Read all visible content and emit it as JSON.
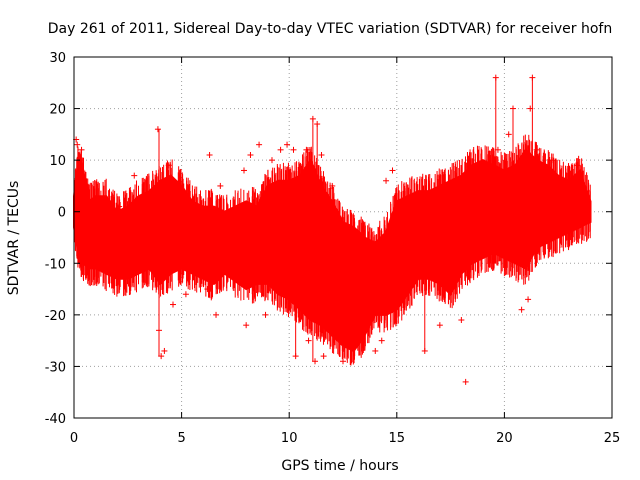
{
  "chart_data": {
    "type": "scatter",
    "title": "Day 261 of 2011, Sidereal Day-to-day VTEC variation (SDTVAR) for receiver hofn",
    "xlabel": "GPS time / hours",
    "ylabel": "SDTVAR / TECUs",
    "xlim": [
      0,
      25
    ],
    "ylim": [
      -40,
      30
    ],
    "xticks": [
      0,
      5,
      10,
      15,
      20,
      25
    ],
    "yticks": [
      -40,
      -30,
      -20,
      -10,
      0,
      10,
      20,
      30
    ],
    "xtick_labels": [
      "0",
      "5",
      "10",
      "15",
      "20",
      "25"
    ],
    "ytick_labels": [
      "-40",
      "-30",
      "-20",
      "-10",
      "0",
      "10",
      "20",
      "30"
    ],
    "grid": true,
    "marker": "+",
    "series": [
      {
        "name": "SDTVAR",
        "color": "#ff0000",
        "envelope": {
          "x": [
            0.0,
            0.2,
            0.4,
            0.7,
            1.0,
            1.5,
            2.0,
            2.5,
            3.0,
            3.5,
            4.0,
            4.5,
            5.0,
            5.5,
            6.0,
            6.5,
            7.0,
            8.0,
            8.5,
            9.0,
            9.5,
            10.0,
            10.5,
            11.0,
            11.5,
            12.0,
            12.5,
            13.0,
            13.5,
            14.0,
            14.5,
            15.0,
            15.5,
            16.0,
            16.5,
            17.0,
            17.5,
            18.0,
            18.5,
            19.0,
            19.5,
            20.0,
            20.5,
            21.0,
            21.5,
            22.0,
            22.5,
            23.0,
            23.5,
            24.0
          ],
          "upper": [
            3,
            10,
            8,
            2,
            3,
            3,
            0,
            1,
            3,
            4,
            6,
            7,
            5,
            2,
            1,
            1,
            0,
            2,
            1,
            5,
            6,
            6,
            7,
            10,
            5,
            2,
            -2,
            -3,
            -5,
            -6,
            -4,
            2,
            3,
            4,
            4,
            5,
            6,
            7,
            9,
            10,
            9,
            8,
            9,
            12,
            10,
            9,
            7,
            6,
            8,
            2
          ],
          "lower": [
            -3,
            -8,
            -10,
            -11,
            -11,
            -12,
            -13,
            -13,
            -12,
            -11,
            -14,
            -12,
            -11,
            -12,
            -13,
            -14,
            -12,
            -15,
            -14,
            -14,
            -16,
            -17,
            -19,
            -21,
            -22,
            -24,
            -26,
            -27,
            -24,
            -20,
            -20,
            -19,
            -16,
            -13,
            -13,
            -14,
            -16,
            -12,
            -10,
            -9,
            -8,
            -9,
            -10,
            -11,
            -7,
            -6,
            -5,
            -4,
            -3,
            -2
          ]
        },
        "points": [
          {
            "x": 0.1,
            "y": 14
          },
          {
            "x": 0.15,
            "y": 13
          },
          {
            "x": 0.35,
            "y": 12
          },
          {
            "x": 2.1,
            "y": 1
          },
          {
            "x": 2.8,
            "y": 7
          },
          {
            "x": 3.9,
            "y": 16
          },
          {
            "x": 3.95,
            "y": -23
          },
          {
            "x": 4.05,
            "y": -28
          },
          {
            "x": 4.2,
            "y": -27
          },
          {
            "x": 4.4,
            "y": 9
          },
          {
            "x": 4.6,
            "y": -18
          },
          {
            "x": 5.1,
            "y": 4
          },
          {
            "x": 5.2,
            "y": -16
          },
          {
            "x": 6.3,
            "y": 11
          },
          {
            "x": 6.6,
            "y": -20
          },
          {
            "x": 6.8,
            "y": 5
          },
          {
            "x": 6.2,
            "y": -15
          },
          {
            "x": 7.9,
            "y": 8
          },
          {
            "x": 8.2,
            "y": 11
          },
          {
            "x": 8.0,
            "y": -22
          },
          {
            "x": 8.6,
            "y": 13
          },
          {
            "x": 8.9,
            "y": -20
          },
          {
            "x": 9.2,
            "y": 10
          },
          {
            "x": 9.6,
            "y": 12
          },
          {
            "x": 9.9,
            "y": 13
          },
          {
            "x": 10.2,
            "y": 12
          },
          {
            "x": 10.8,
            "y": 12
          },
          {
            "x": 10.3,
            "y": -28
          },
          {
            "x": 10.9,
            "y": -25
          },
          {
            "x": 11.1,
            "y": 18
          },
          {
            "x": 11.3,
            "y": 17
          },
          {
            "x": 11.5,
            "y": 11
          },
          {
            "x": 11.2,
            "y": -29
          },
          {
            "x": 11.6,
            "y": -28
          },
          {
            "x": 12.0,
            "y": 5
          },
          {
            "x": 12.5,
            "y": -29
          },
          {
            "x": 14.0,
            "y": -27
          },
          {
            "x": 14.3,
            "y": -25
          },
          {
            "x": 14.5,
            "y": 6
          },
          {
            "x": 14.8,
            "y": 8
          },
          {
            "x": 16.3,
            "y": -27
          },
          {
            "x": 17.0,
            "y": -22
          },
          {
            "x": 18.2,
            "y": -33
          },
          {
            "x": 18.0,
            "y": -21
          },
          {
            "x": 19.6,
            "y": 26
          },
          {
            "x": 19.7,
            "y": 12
          },
          {
            "x": 20.4,
            "y": 20
          },
          {
            "x": 20.2,
            "y": 15
          },
          {
            "x": 21.3,
            "y": 26
          },
          {
            "x": 21.2,
            "y": 20
          },
          {
            "x": 21.5,
            "y": 12
          },
          {
            "x": 22.2,
            "y": 10
          },
          {
            "x": 23.4,
            "y": 9
          },
          {
            "x": 23.8,
            "y": 4
          },
          {
            "x": 20.8,
            "y": -19
          },
          {
            "x": 21.1,
            "y": -17
          }
        ],
        "spikes": [
          {
            "x": 19.6,
            "y1": -4,
            "y2": 26
          },
          {
            "x": 20.4,
            "y1": 0,
            "y2": 20
          },
          {
            "x": 21.3,
            "y1": 2,
            "y2": 26
          },
          {
            "x": 3.95,
            "y1": -28,
            "y2": 16
          },
          {
            "x": 11.1,
            "y1": -29,
            "y2": 18
          },
          {
            "x": 11.3,
            "y1": -25,
            "y2": 17
          },
          {
            "x": 10.3,
            "y1": -28,
            "y2": 5
          },
          {
            "x": 16.3,
            "y1": -27,
            "y2": 3
          }
        ]
      }
    ]
  }
}
